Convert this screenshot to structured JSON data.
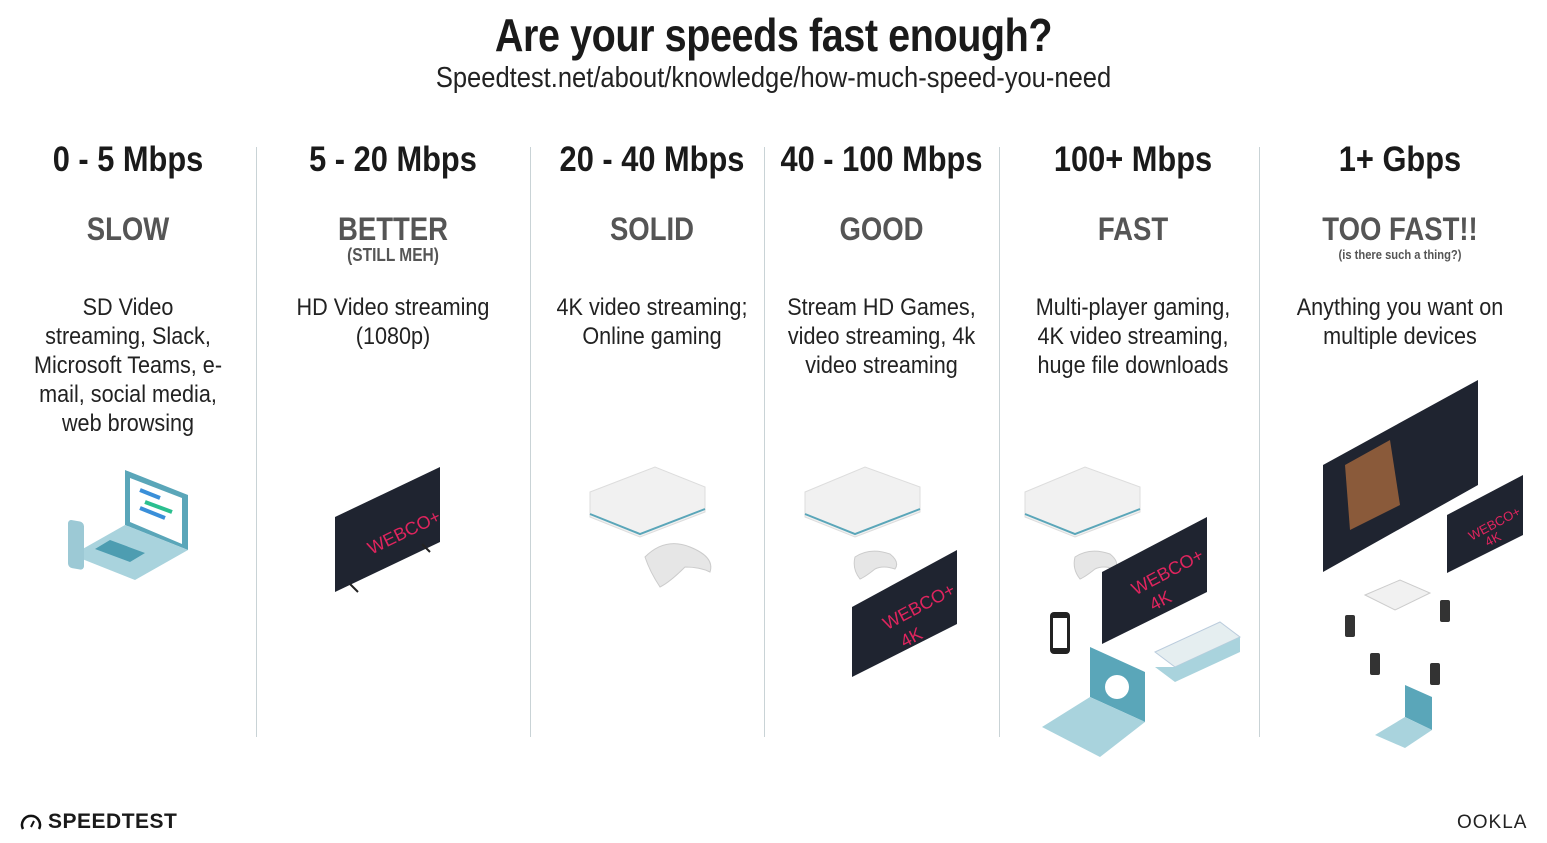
{
  "header": {
    "title": "Are your speeds fast enough?",
    "subtitle": "Speedtest.net/about/knowledge/how-much-speed-you-need"
  },
  "tiers": [
    {
      "speed": "0 - 5 Mbps",
      "rating": "SLOW",
      "rating_sub": "",
      "description": "SD Video streaming, Slack, Microsoft Teams, e-mail, social media, web browsing",
      "devices": [
        "laptop-icon",
        "phone-icon"
      ]
    },
    {
      "speed": "5 - 20 Mbps",
      "rating": "BETTER",
      "rating_sub": "(STILL MEH)",
      "description": "HD Video streaming (1080p)",
      "devices": [
        "tv-icon"
      ]
    },
    {
      "speed": "20 - 40 Mbps",
      "rating": "SOLID",
      "rating_sub": "",
      "description": "4K video streaming; Online gaming",
      "devices": [
        "game-console-icon",
        "gamepad-icon"
      ]
    },
    {
      "speed": "40 - 100 Mbps",
      "rating": "GOOD",
      "rating_sub": "",
      "description": "Stream HD Games, video streaming, 4k video streaming",
      "devices": [
        "game-console-icon",
        "gamepad-icon",
        "tv-4k-icon"
      ]
    },
    {
      "speed": "100+ Mbps",
      "rating": "FAST",
      "rating_sub": "",
      "description": "Multi-player gaming, 4K video streaming, huge file downloads",
      "devices": [
        "game-console-icon",
        "gamepad-icon",
        "tv-4k-icon",
        "phone-icon",
        "laptop-download-icon",
        "game-console-icon"
      ]
    },
    {
      "speed": "1+ Gbps",
      "rating": "TOO FAST!!",
      "rating_sub": "(is there such a thing?)",
      "description": "Anything you want on multiple devices",
      "devices": [
        "tv-icon",
        "tv-4k-icon",
        "game-console-icon",
        "gamepad-icon",
        "phone-icon",
        "laptop-download-icon"
      ]
    }
  ],
  "tv_logo": {
    "brand": "WEBCO+",
    "resolution": "4K"
  },
  "footer": {
    "left_brand": "SPEEDTEST",
    "right_brand": "OOKLA"
  },
  "colors": {
    "tv_logo": "#e0245e",
    "device_teal": "#7fb8c7",
    "divider": "#c9d3d6"
  }
}
